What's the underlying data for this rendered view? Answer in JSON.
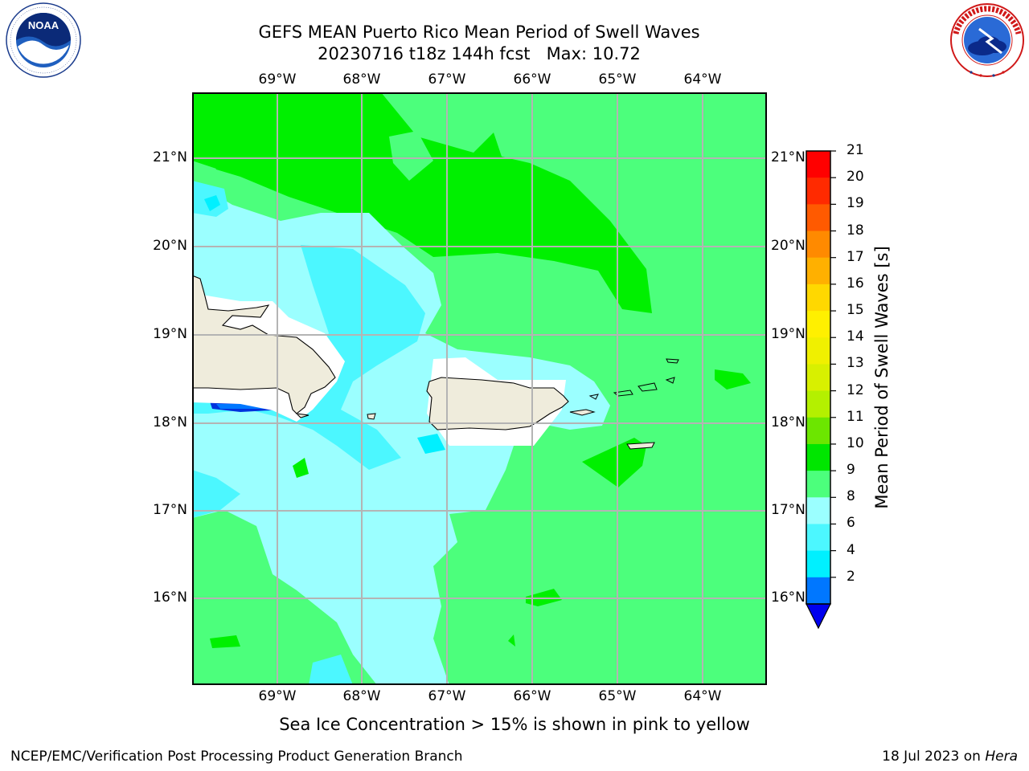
{
  "header": {
    "title_line1": "GEFS MEAN Puerto Rico Mean Period of Swell Waves",
    "title_line2": "20230716 t18z 144h fcst   Max: 10.72"
  },
  "logos": {
    "noaa": {
      "text": "NOAA",
      "ring_text": "NATIONAL OCEANIC AND ATMOSPHERIC ADMINISTRATION · U.S. DEPARTMENT OF COMMERCE"
    },
    "nws": {
      "ring_text": "NATIONAL WEATHER SERVICE"
    }
  },
  "map": {
    "lon_labels": [
      "69°W",
      "68°W",
      "67°W",
      "66°W",
      "65°W",
      "64°W"
    ],
    "lat_labels": [
      "21°N",
      "20°N",
      "19°N",
      "18°N",
      "17°N",
      "16°N"
    ],
    "colors": {
      "ocean_green": "#4cff7c",
      "bright_green": "#00f000",
      "pale_cyan": "#9bffff",
      "cyan": "#4cf7ff",
      "aqua": "#00f0ff",
      "blue": "#0077ff",
      "dark_blue": "#0033dd",
      "land": "#efecdc",
      "grid": "#b4b4b4"
    }
  },
  "colorbar": {
    "label": "Mean Period of Swell Waves [s]",
    "ticks": [
      "21",
      "20",
      "19",
      "18",
      "17",
      "16",
      "15",
      "14",
      "13",
      "12",
      "11",
      "10",
      "9",
      "8",
      "6",
      "4",
      "2"
    ],
    "colors_top_to_bottom": [
      "#ff0000",
      "#ff2a00",
      "#ff5a00",
      "#ff8a00",
      "#ffb000",
      "#ffd800",
      "#fff000",
      "#f0f000",
      "#d8f000",
      "#b4f000",
      "#6ce600",
      "#00e600",
      "#4cff7c",
      "#9bffff",
      "#4cf7ff",
      "#00f0ff",
      "#0077ff"
    ],
    "extend_color": "#0000ee"
  },
  "subtitle": "Sea Ice Concentration > 15% is shown in pink to yellow",
  "footer": {
    "left": "NCEP/EMC/Verification Post Processing Product Generation Branch",
    "right_date": "18 Jul 2023 on ",
    "right_host": "Hera"
  }
}
